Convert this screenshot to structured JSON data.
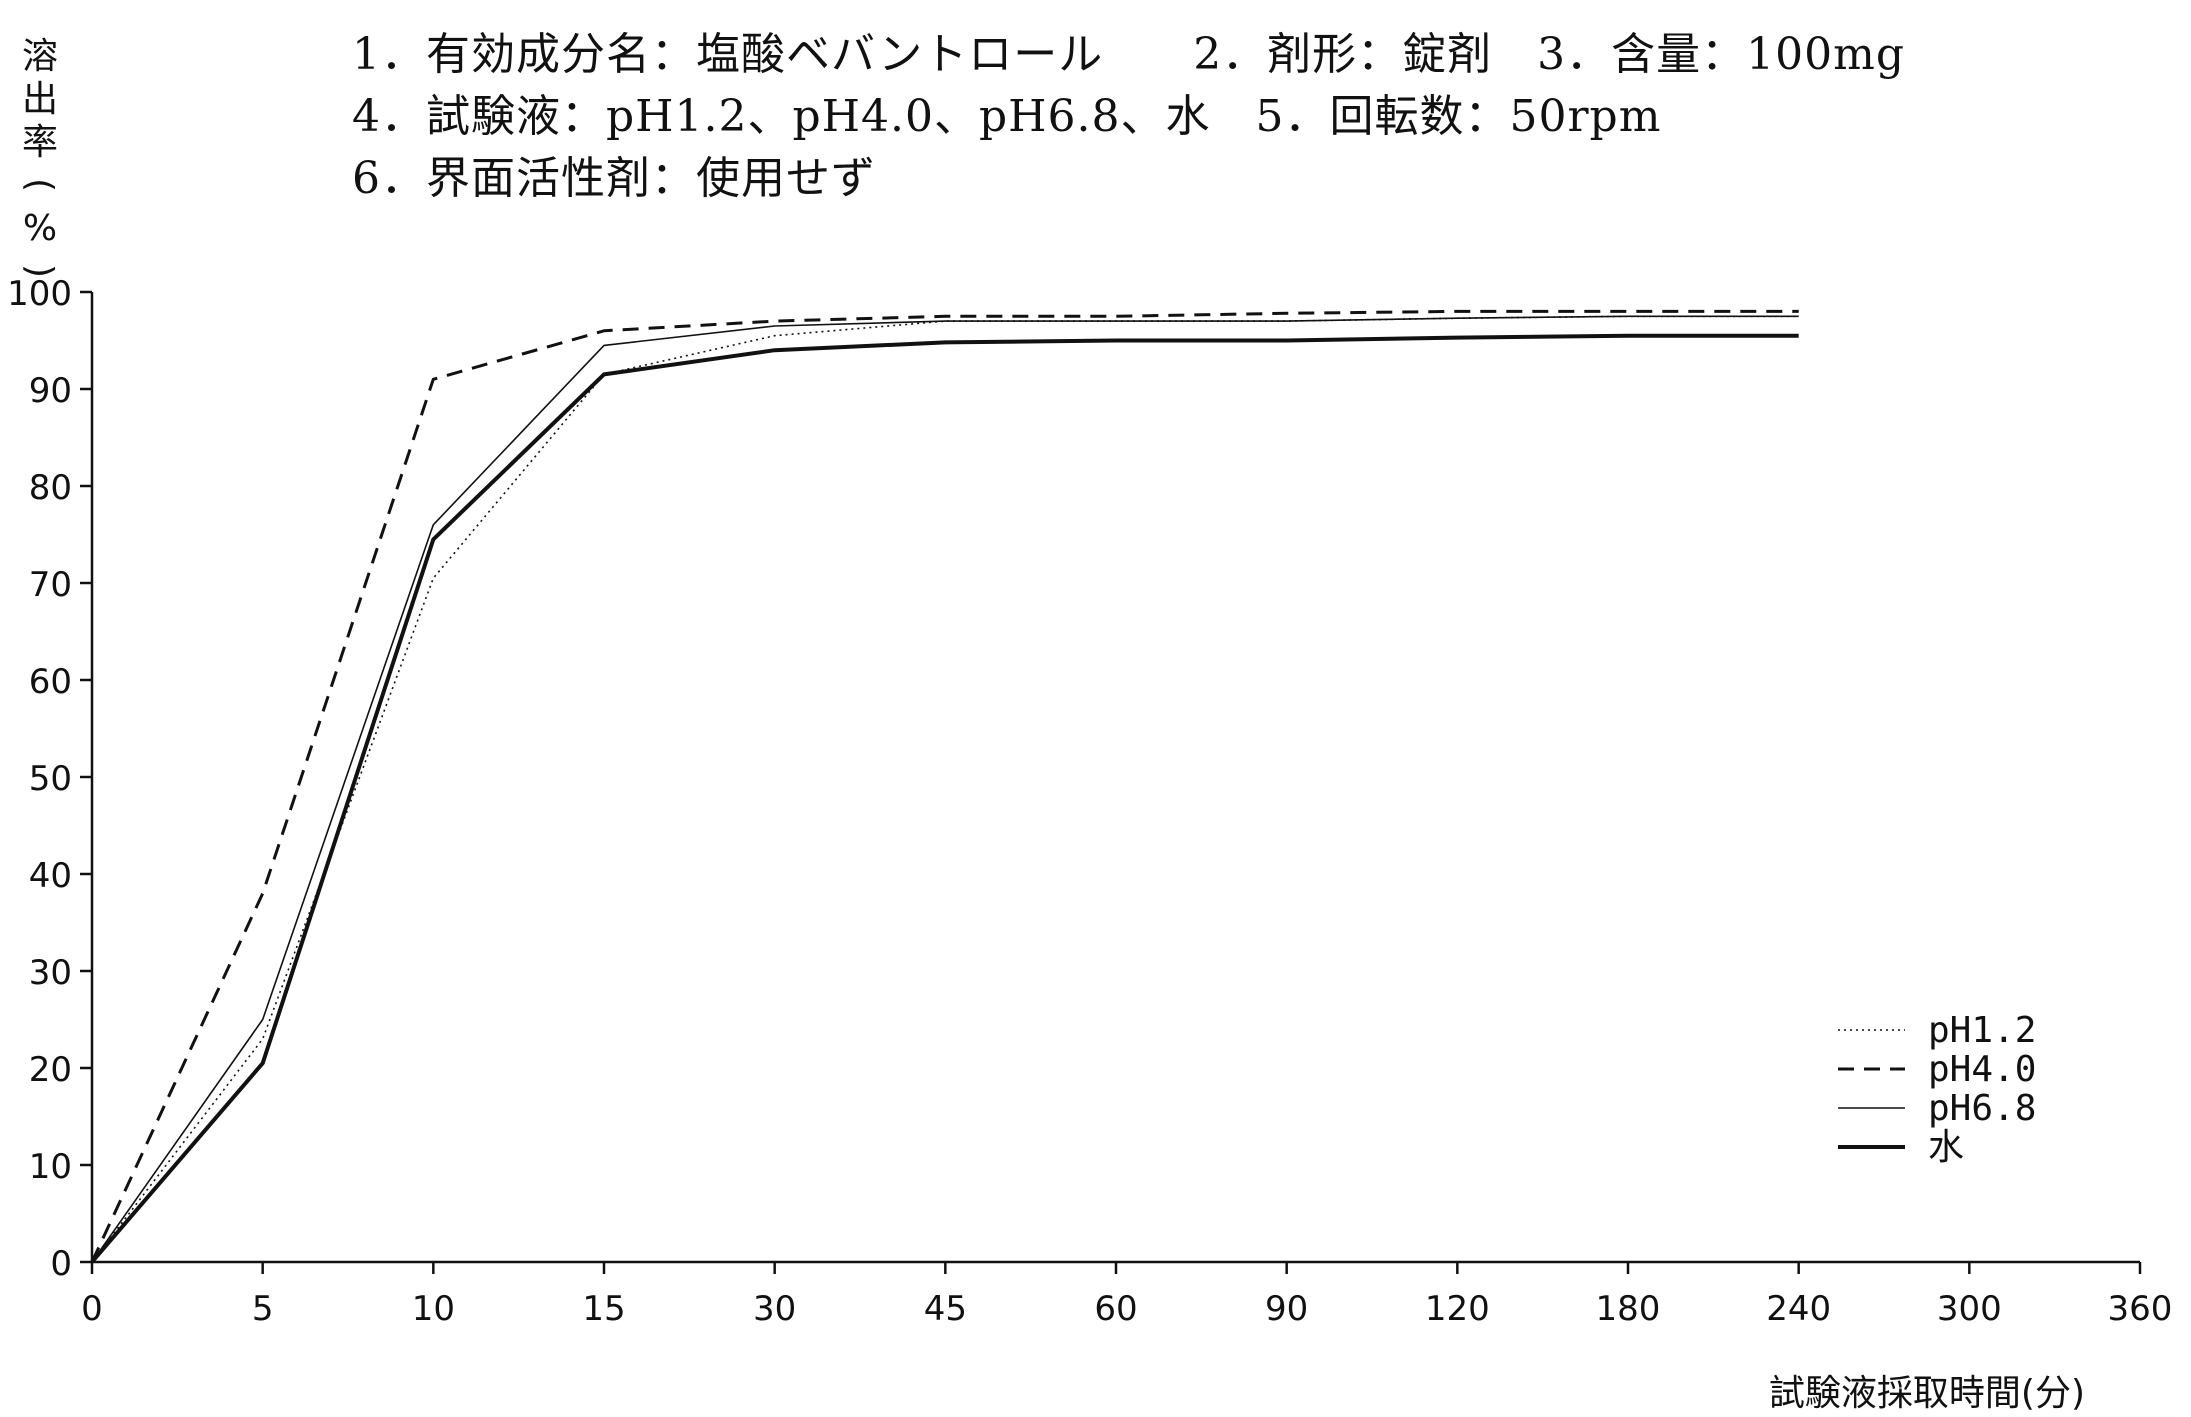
{
  "conditions": {
    "line1": "1．有効成分名：塩酸ベバントロール　　2．剤形：錠剤　3．含量：100mg",
    "line2": "4．試験液：pH1.2、pH4.0、pH6.8、水　5．回転数：50rpm",
    "line3": "6．界面活性剤：使用せず"
  },
  "chart_data": {
    "type": "line",
    "ylabel": "溶出率(%)",
    "xlabel": "試験液採取時間(分)",
    "categories": [
      "0",
      "5",
      "10",
      "15",
      "30",
      "45",
      "60",
      "90",
      "120",
      "180",
      "240",
      "300",
      "360"
    ],
    "yticks": [
      "0",
      "10",
      "20",
      "30",
      "40",
      "50",
      "60",
      "70",
      "80",
      "90",
      "100"
    ],
    "ylim": [
      0,
      100
    ],
    "grid": false,
    "legend_position": "bottom-right",
    "series": [
      {
        "name": "pH1.2",
        "style": "dotted",
        "x": [
          0,
          5,
          10,
          15,
          30,
          45,
          60,
          90,
          120,
          180,
          240
        ],
        "values": [
          0,
          23,
          70.5,
          91.5,
          95.5,
          97,
          97,
          97,
          97.3,
          97.5,
          97.5
        ]
      },
      {
        "name": "pH4.0",
        "style": "dashed",
        "x": [
          0,
          5,
          10,
          15,
          30,
          45,
          60,
          90,
          120,
          180,
          240
        ],
        "values": [
          0,
          38,
          91,
          96,
          97,
          97.5,
          97.5,
          97.8,
          98,
          98,
          98
        ]
      },
      {
        "name": "pH6.8",
        "style": "thin",
        "x": [
          0,
          5,
          10,
          15,
          30,
          45,
          60,
          90,
          120,
          180,
          240
        ],
        "values": [
          0,
          25,
          76,
          94.5,
          96.5,
          97,
          97,
          97,
          97.3,
          97.5,
          97.5
        ]
      },
      {
        "name": "水",
        "style": "thick",
        "x": [
          0,
          5,
          10,
          15,
          30,
          45,
          60,
          90,
          120,
          180,
          240
        ],
        "values": [
          0,
          20.5,
          74.5,
          91.5,
          94,
          94.8,
          95,
          95,
          95.3,
          95.5,
          95.5
        ]
      }
    ]
  },
  "colors": {
    "line": "#111111",
    "background": "#ffffff"
  }
}
